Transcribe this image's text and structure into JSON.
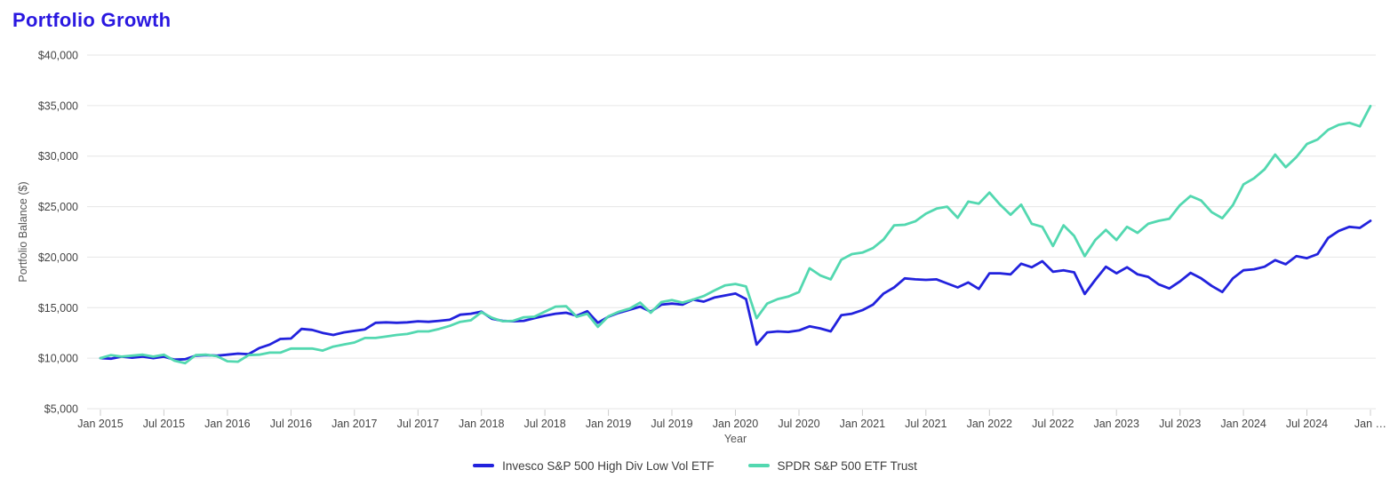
{
  "page": {
    "title": "Portfolio Growth"
  },
  "colors": {
    "title": "#2a18e0",
    "invesco_line": "#2222dd",
    "spdr_line": "#53d8b0",
    "gridline": "#e6e6e6",
    "tick_text": "#444444",
    "axis_title_text": "#555555",
    "tick_mark": "#cccccc"
  },
  "chart_data": {
    "type": "line",
    "title": "Portfolio Growth",
    "xlabel": "Year",
    "ylabel": "Portfolio Balance ($)",
    "ylim": [
      5000,
      40000
    ],
    "y_ticks": [
      5000,
      10000,
      15000,
      20000,
      25000,
      30000,
      35000,
      40000
    ],
    "y_tick_labels": [
      "$5,000",
      "$10,000",
      "$15,000",
      "$20,000",
      "$25,000",
      "$30,000",
      "$35,000",
      "$40,000"
    ],
    "x_tick_labels": [
      "Jan 2015",
      "Jul 2015",
      "Jan 2016",
      "Jul 2016",
      "Jan 2017",
      "Jul 2017",
      "Jan 2018",
      "Jul 2018",
      "Jan 2019",
      "Jul 2019",
      "Jan 2020",
      "Jul 2020",
      "Jan 2021",
      "Jul 2021",
      "Jan 2022",
      "Jul 2022",
      "Jan 2023",
      "Jul 2023",
      "Jan 2024",
      "Jul 2024",
      "Jan …"
    ],
    "x_interval": "monthly, Jan 2015 to Jan 2025",
    "grid": true,
    "legend_position": "bottom",
    "series": [
      {
        "name": "Invesco S&P 500 High Div Low Vol ETF",
        "color": "#2222dd",
        "values": [
          10000,
          9950,
          10150,
          10050,
          10150,
          10000,
          10150,
          9850,
          9900,
          10250,
          10300,
          10250,
          10350,
          10450,
          10400,
          11000,
          11350,
          11900,
          11950,
          12900,
          12800,
          12500,
          12300,
          12550,
          12700,
          12850,
          13500,
          13550,
          13500,
          13550,
          13650,
          13600,
          13700,
          13800,
          14300,
          14400,
          14600,
          13900,
          13700,
          13650,
          13700,
          13950,
          14200,
          14400,
          14500,
          14200,
          14650,
          13500,
          14100,
          14500,
          14800,
          15100,
          14600,
          15300,
          15400,
          15300,
          15800,
          15600,
          16000,
          16200,
          16400,
          15850,
          11350,
          12550,
          12650,
          12600,
          12750,
          13150,
          12950,
          12650,
          14250,
          14400,
          14750,
          15300,
          16400,
          17000,
          17900,
          17800,
          17750,
          17800,
          17400,
          17000,
          17500,
          16850,
          18400,
          18400,
          18300,
          19350,
          19000,
          19600,
          18550,
          18700,
          18500,
          16350,
          17750,
          19050,
          18400,
          19000,
          18300,
          18050,
          17300,
          16900,
          17600,
          18450,
          17900,
          17150,
          16550,
          17900,
          18700,
          18800,
          19050,
          19700,
          19300,
          20100,
          19900,
          20300,
          21900,
          22600,
          23000,
          22900,
          23600
        ]
      },
      {
        "name": "SPDR S&P 500 ETF Trust",
        "color": "#53d8b0",
        "values": [
          10000,
          10300,
          10150,
          10250,
          10350,
          10150,
          10350,
          9750,
          9500,
          10300,
          10350,
          10200,
          9700,
          9650,
          10300,
          10350,
          10550,
          10550,
          10950,
          10950,
          10950,
          10750,
          11150,
          11350,
          11550,
          12000,
          12000,
          12150,
          12300,
          12400,
          12650,
          12650,
          12900,
          13200,
          13600,
          13750,
          14550,
          14000,
          13650,
          13700,
          14050,
          14100,
          14600,
          15100,
          15150,
          14100,
          14400,
          13100,
          14150,
          14600,
          14900,
          15500,
          14500,
          15550,
          15750,
          15500,
          15800,
          16150,
          16700,
          17200,
          17350,
          17100,
          13950,
          15400,
          15850,
          16100,
          16550,
          18900,
          18200,
          17800,
          19750,
          20300,
          20450,
          20900,
          21750,
          23150,
          23200,
          23550,
          24300,
          24800,
          25000,
          23900,
          25500,
          25300,
          26400,
          25200,
          24200,
          25200,
          23300,
          23000,
          21100,
          23150,
          22100,
          20100,
          21700,
          22700,
          21700,
          23000,
          22400,
          23300,
          23600,
          23800,
          25150,
          26050,
          25600,
          24450,
          23850,
          25150,
          27200,
          27800,
          28700,
          30150,
          28900,
          29900,
          31200,
          31650,
          32600,
          33100,
          33300,
          32950,
          34950
        ]
      }
    ]
  }
}
